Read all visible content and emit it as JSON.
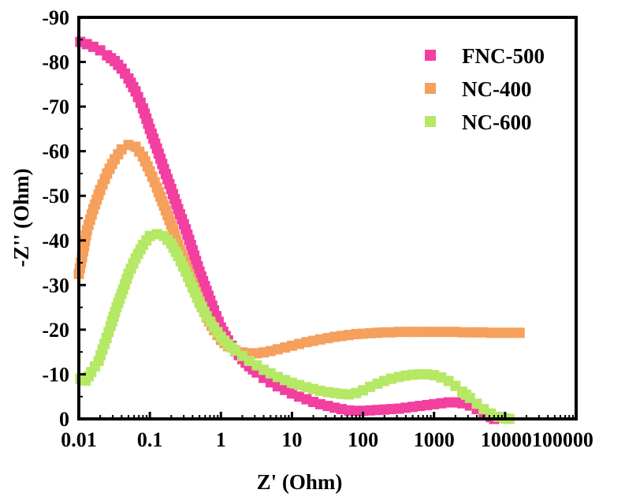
{
  "chart_data": {
    "type": "scatter",
    "title": "",
    "xlabel": "Z' (Ohm)",
    "ylabel": "-Z'' (Ohm)",
    "xscale": "log",
    "xlim": [
      0.01,
      100000
    ],
    "ylim": [
      0,
      -90
    ],
    "x_ticks": [
      "0.01",
      "0.1",
      "1",
      "10",
      "100",
      "1000",
      "10000",
      "100000"
    ],
    "x_tick_values": [
      0.01,
      0.1,
      1,
      10,
      100,
      1000,
      10000,
      100000
    ],
    "y_ticks": [
      "0",
      "-10",
      "-20",
      "-30",
      "-40",
      "-50",
      "-60",
      "-70",
      "-80",
      "-90"
    ],
    "y_tick_values": [
      0,
      10,
      20,
      30,
      40,
      50,
      60,
      70,
      80,
      90
    ],
    "grid": false,
    "legend_position": "top-right",
    "series": [
      {
        "name": "FNC-500",
        "color": "#f23fa0",
        "x": [
          0.0105,
          0.013,
          0.016,
          0.02,
          0.025,
          0.032,
          0.04,
          0.05,
          0.063,
          0.08,
          0.1,
          0.126,
          0.158,
          0.2,
          0.25,
          0.32,
          0.4,
          0.5,
          0.63,
          0.8,
          1.0,
          1.26,
          1.6,
          2.0,
          2.5,
          3.2,
          4.0,
          5.0,
          6.3,
          8.0,
          10,
          12.6,
          16,
          20,
          25,
          32,
          40,
          50,
          63,
          80,
          100,
          126,
          160,
          200,
          250,
          320,
          400,
          500,
          630,
          800,
          1000,
          1260,
          1600,
          2000,
          2500,
          3200,
          4000,
          5000,
          6300,
          7000
        ],
        "y": [
          84.5,
          84,
          83.4,
          82.6,
          81.5,
          80.2,
          78.5,
          76.3,
          73.4,
          69.6,
          65,
          60.6,
          56,
          51.5,
          47,
          42.5,
          37.8,
          33,
          28.7,
          24.3,
          20.5,
          17.6,
          15.2,
          13.4,
          11.8,
          10.4,
          9.2,
          8.2,
          7.3,
          6.5,
          5.7,
          5.0,
          4.4,
          3.8,
          3.3,
          2.9,
          2.5,
          2.2,
          1.9,
          1.8,
          1.8,
          1.9,
          2.0,
          2.1,
          2.2,
          2.3,
          2.5,
          2.7,
          2.9,
          3.1,
          3.3,
          3.5,
          3.7,
          3.7,
          3.5,
          3.0,
          2.2,
          1.3,
          0.4,
          0
        ]
      },
      {
        "name": "NC-400",
        "color": "#f5a05c",
        "x": [
          0.01,
          0.0115,
          0.013,
          0.016,
          0.02,
          0.025,
          0.032,
          0.04,
          0.05,
          0.063,
          0.08,
          0.1,
          0.126,
          0.158,
          0.2,
          0.25,
          0.32,
          0.4,
          0.5,
          0.63,
          0.8,
          1.0,
          1.26,
          1.6,
          2.0,
          2.5,
          3.2,
          4.0,
          5.0,
          6.3,
          8.0,
          10,
          12.6,
          16,
          20,
          25,
          32,
          40,
          50,
          63,
          80,
          100,
          126,
          160,
          200,
          250,
          320,
          400,
          500,
          630,
          800,
          1000,
          1260,
          1600,
          2000,
          2500,
          3200,
          4000,
          5000,
          6300,
          8000,
          10000,
          12600,
          16000
        ],
        "y": [
          32.5,
          37.5,
          42.3,
          47,
          51.3,
          55,
          58.2,
          60.4,
          61.4,
          61,
          58.8,
          55.5,
          51.8,
          47.8,
          43.5,
          39,
          34.5,
          30.4,
          26.4,
          22.8,
          19.9,
          17.7,
          16.3,
          15.4,
          14.9,
          14.7,
          14.7,
          14.9,
          15.2,
          15.6,
          16.0,
          16.4,
          16.8,
          17.2,
          17.5,
          17.8,
          18.1,
          18.4,
          18.6,
          18.8,
          19.0,
          19.1,
          19.2,
          19.3,
          19.4,
          19.4,
          19.5,
          19.5,
          19.5,
          19.5,
          19.5,
          19.5,
          19.5,
          19.5,
          19.5,
          19.4,
          19.4,
          19.4,
          19.4,
          19.3,
          19.3,
          19.3,
          19.3,
          19.3
        ]
      },
      {
        "name": "NC-600",
        "color": "#b5e864",
        "x": [
          0.0105,
          0.0125,
          0.015,
          0.019,
          0.023,
          0.028,
          0.034,
          0.042,
          0.05,
          0.063,
          0.08,
          0.1,
          0.126,
          0.158,
          0.2,
          0.25,
          0.32,
          0.4,
          0.5,
          0.63,
          0.8,
          1.0,
          1.26,
          1.6,
          2.0,
          2.5,
          3.2,
          4.0,
          5.0,
          6.3,
          8.0,
          10,
          12.6,
          16,
          20,
          25,
          32,
          40,
          50,
          63,
          80,
          100,
          126,
          160,
          200,
          250,
          320,
          400,
          500,
          630,
          800,
          1000,
          1260,
          1600,
          2000,
          2500,
          3200,
          4000,
          5000,
          6300,
          8000,
          10000,
          11500
        ],
        "y": [
          9,
          8.6,
          10.5,
          13,
          16.8,
          20.8,
          25,
          29,
          32.5,
          36,
          39,
          41,
          41.4,
          41,
          39.3,
          36.5,
          33,
          29.5,
          26,
          23,
          20.5,
          18.4,
          16.7,
          15.3,
          14.1,
          13,
          12,
          11,
          10.2,
          9.4,
          8.7,
          8.1,
          7.6,
          7.1,
          6.7,
          6.3,
          6.0,
          5.8,
          5.6,
          5.5,
          5.8,
          6.4,
          7.2,
          7.9,
          8.5,
          9.0,
          9.4,
          9.7,
          9.9,
          10.0,
          10.0,
          9.8,
          9.3,
          8.5,
          7.4,
          6.1,
          4.7,
          3.4,
          2.2,
          1.2,
          0.5,
          0.1,
          0
        ]
      }
    ]
  }
}
